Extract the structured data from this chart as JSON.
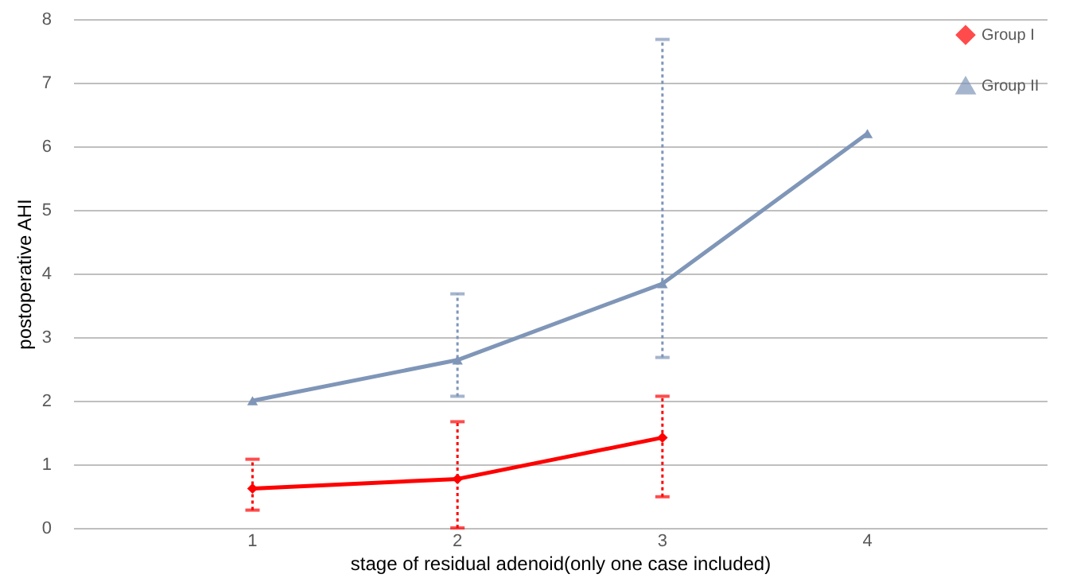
{
  "chart_data": {
    "type": "line",
    "xlabel": "stage of residual adenoid(only one case included)",
    "ylabel": "postoperative AHI",
    "categories": [
      "1",
      "2",
      "3",
      "4"
    ],
    "series": [
      {
        "name": "Group I",
        "color": "#ff0000",
        "marker": "diamond",
        "values": [
          0.62,
          0.77,
          1.42,
          null
        ],
        "errors": [
          [
            0.28,
            1.08
          ],
          [
            0,
            1.67
          ],
          [
            0.49,
            2.07
          ],
          null
        ]
      },
      {
        "name": "Group II",
        "color": "#7f96b8",
        "marker": "triangle",
        "values": [
          2.0,
          2.64,
          3.84,
          6.2
        ],
        "errors": [
          null,
          [
            2.07,
            3.68
          ],
          [
            2.68,
            7.68
          ],
          null
        ]
      }
    ],
    "ylim": [
      0,
      8
    ],
    "yticks": [
      0,
      1,
      2,
      3,
      4,
      5,
      6,
      7,
      8
    ],
    "grid": "y",
    "legend": "top right"
  }
}
